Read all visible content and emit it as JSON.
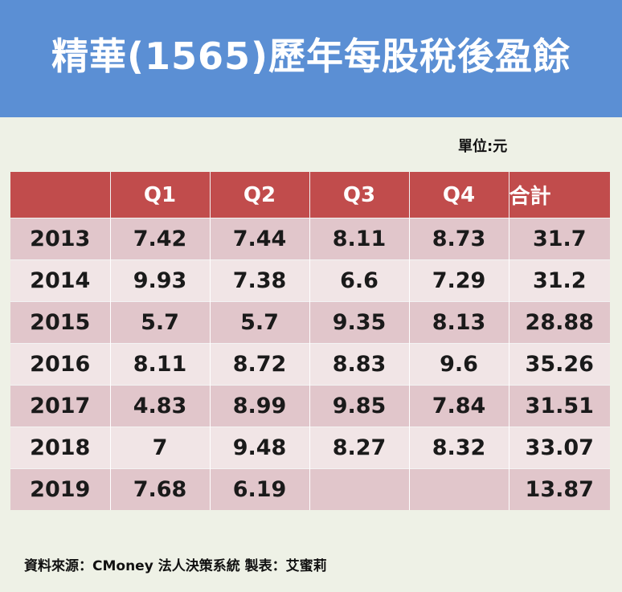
{
  "title": "精華(1565)歷年每股稅後盈餘",
  "unit": "單位:元",
  "table": {
    "headers": [
      "",
      "Q1",
      "Q2",
      "Q3",
      "Q4",
      "合計"
    ],
    "rows": [
      [
        "2013",
        "7.42",
        "7.44",
        "8.11",
        "8.73",
        "31.7"
      ],
      [
        "2014",
        "9.93",
        "7.38",
        "6.6",
        "7.29",
        "31.2"
      ],
      [
        "2015",
        "5.7",
        "5.7",
        "9.35",
        "8.13",
        "28.88"
      ],
      [
        "2016",
        "8.11",
        "8.72",
        "8.83",
        "9.6",
        "35.26"
      ],
      [
        "2017",
        "4.83",
        "8.99",
        "9.85",
        "7.84",
        "31.51"
      ],
      [
        "2018",
        "7",
        "9.48",
        "8.27",
        "8.32",
        "33.07"
      ],
      [
        "2019",
        "7.68",
        "6.19",
        "",
        "",
        "13.87"
      ]
    ]
  },
  "source": "資料來源：CMoney 法人決策系統  製表：艾蜜莉",
  "colors": {
    "header_bg": "#5b8fd4",
    "table_header_bg": "#c14c4c",
    "row_dark": "#e1c6cb",
    "row_light": "#f1e5e6",
    "page_bg": "#eef1e6"
  }
}
